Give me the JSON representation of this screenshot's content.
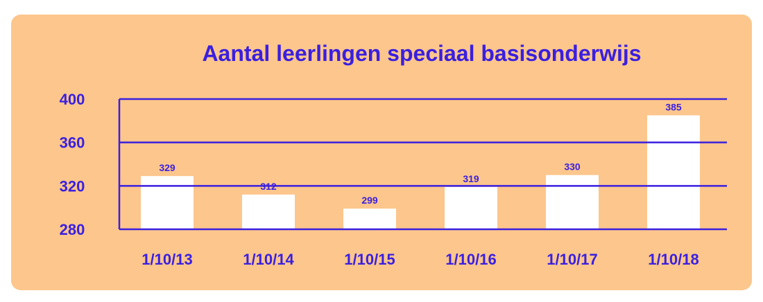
{
  "colors": {
    "background": "#fcc68c",
    "accent": "#3a1fe0",
    "bar": "#ffffff"
  },
  "chart_data": {
    "type": "bar",
    "title": "Aantal leerlingen speciaal basisonderwijs",
    "categories": [
      "1/10/13",
      "1/10/14",
      "1/10/15",
      "1/10/16",
      "1/10/17",
      "1/10/18"
    ],
    "values": [
      329,
      312,
      299,
      319,
      330,
      385
    ],
    "data_labels": [
      "329",
      "312",
      "299",
      "319",
      "330",
      "385"
    ],
    "y_ticks": [
      280,
      320,
      360,
      400
    ],
    "ylim": [
      280,
      400
    ],
    "grid": true,
    "legend": "none"
  }
}
